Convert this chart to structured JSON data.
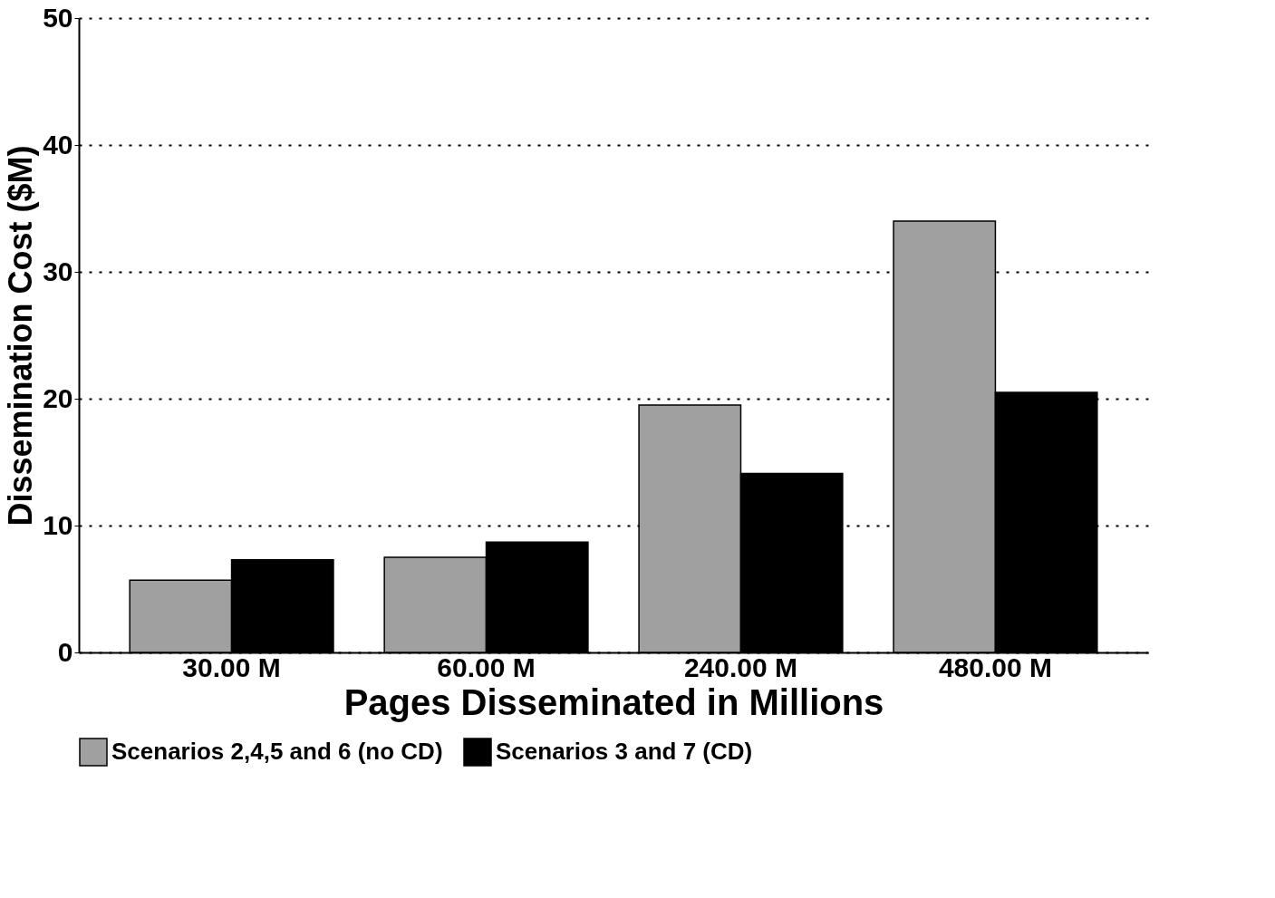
{
  "chart_data": {
    "type": "bar",
    "xlabel": "Pages Disseminated in Millions",
    "ylabel": "Dissemination Cost ($M)",
    "categories": [
      "30.00 M",
      "60.00 M",
      "240.00 M",
      "480.00 M"
    ],
    "series": [
      {
        "name": "Scenarios 2,4,5 and 6 (no CD)",
        "color": "#a0a0a0",
        "values": [
          5.7,
          7.5,
          19.5,
          34.0
        ]
      },
      {
        "name": "Scenarios 3 and 7 (CD)",
        "color": "#000000",
        "values": [
          7.3,
          8.7,
          14.1,
          20.5
        ]
      }
    ],
    "ylim": [
      0,
      50
    ],
    "yticks": [
      0,
      10,
      20,
      30,
      40,
      50
    ],
    "grid": "y",
    "legend": "bottom"
  }
}
